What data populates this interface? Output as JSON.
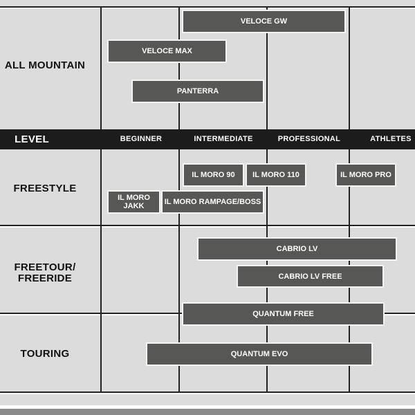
{
  "categories": {
    "all_mountain": "ALL MOUNTAIN",
    "freestyle": "FREESTYLE",
    "freetour": "FREETOUR/\nFREERIDE",
    "touring": "TOURING"
  },
  "level_header": {
    "title": "LEVEL",
    "levels": [
      "BEGINNER",
      "INTERMEDIATE",
      "PROFESSIONAL",
      "ATHLETES"
    ]
  },
  "products": [
    {
      "name": "VELOCE GW",
      "category": "ALL MOUNTAIN"
    },
    {
      "name": "VELOCE MAX",
      "category": "ALL MOUNTAIN"
    },
    {
      "name": "PANTERRA",
      "category": "ALL MOUNTAIN"
    },
    {
      "name": "IL MORO 90",
      "category": "FREESTYLE"
    },
    {
      "name": "IL MORO 110",
      "category": "FREESTYLE"
    },
    {
      "name": "IL MORO PRO",
      "category": "FREESTYLE"
    },
    {
      "name": "IL MORO\nJAKK",
      "category": "FREESTYLE"
    },
    {
      "name": "IL MORO RAMPAGE/BOSS",
      "category": "FREESTYLE"
    },
    {
      "name": "CABRIO LV",
      "category": "FREETOUR/FREERIDE"
    },
    {
      "name": "CABRIO LV FREE",
      "category": "FREETOUR/FREERIDE"
    },
    {
      "name": "QUANTUM FREE",
      "category": "TOURING"
    },
    {
      "name": "QUANTUM EVO",
      "category": "TOURING"
    }
  ],
  "colors": {
    "bar": "#575755",
    "header_band": "#1c1c1c",
    "background": "#dcdcdc"
  }
}
